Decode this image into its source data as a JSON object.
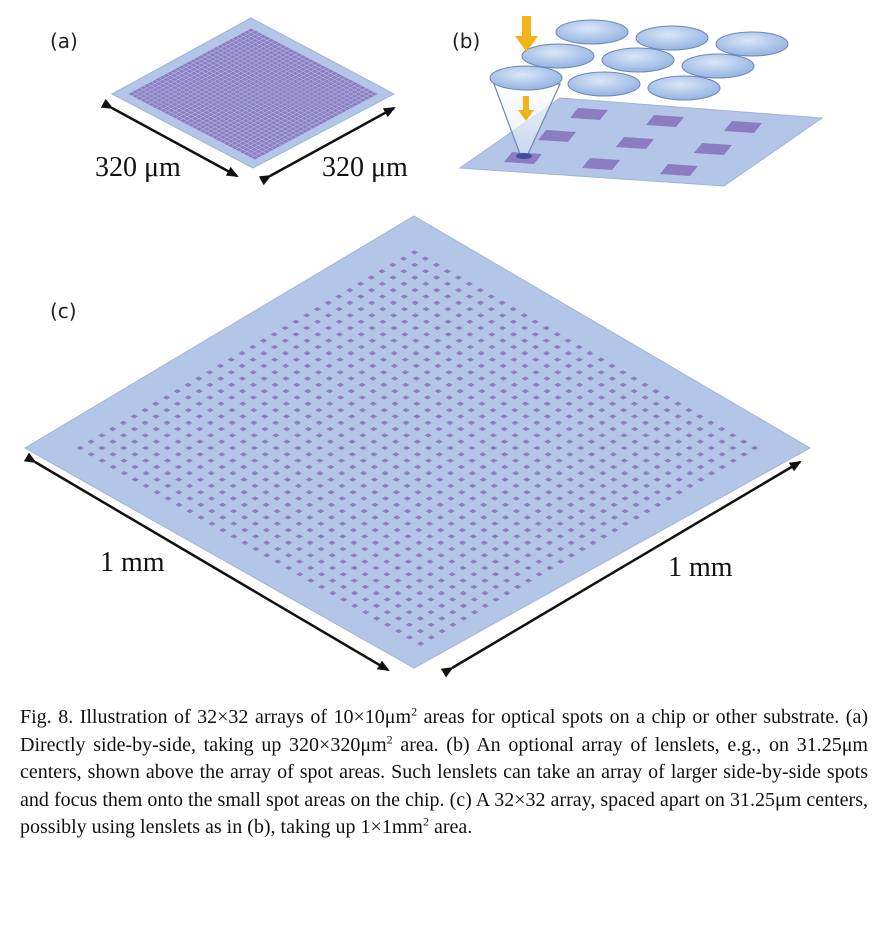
{
  "panels": {
    "a": {
      "label": "(a)",
      "dim_left": "320 μm",
      "dim_right": "320 μm",
      "grid_n": 32
    },
    "b": {
      "label": "(b)"
    },
    "c": {
      "label": "(c)",
      "dim_left": "1 mm",
      "dim_right": "1 mm",
      "grid_n": 32
    }
  },
  "colors": {
    "substrate": "#b4c6e7",
    "substrate_edge": "#9fb4da",
    "spot": "#8e7cc3",
    "spot_dark": "#6a5aa8",
    "lens": "#a9c4ea",
    "arrow_yellow": "#f2b21a",
    "dimension_arrow": "#111111"
  },
  "caption": {
    "p1": "Fig. 8. Illustration of 32×32 arrays of 10×10μm",
    "sup1": "2",
    "p2": " areas for optical spots on a chip or other substrate. (a) Directly side-by-side, taking up 320×320μm",
    "sup2": "2",
    "p3": " area. (b) An optional array of lenslets, e.g., on 31.25μm centers, shown above the array of spot areas. Such lenslets can take an array of larger side-by-side spots and focus them onto the small spot areas on the chip. (c) A 32×32 array, spaced apart on 31.25μm centers, possibly using lenslets as in (b), taking up 1×1mm",
    "sup3": "2",
    "p4": " area."
  }
}
